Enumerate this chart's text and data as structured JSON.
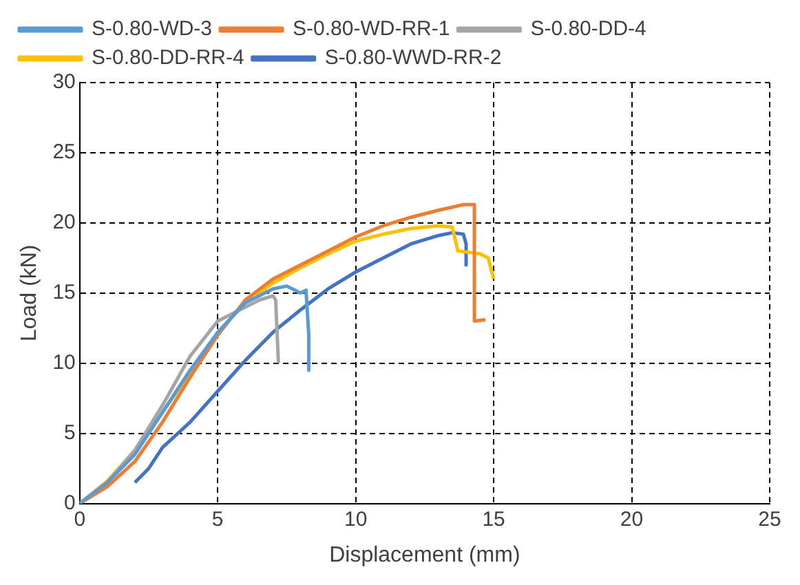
{
  "chart_data": {
    "type": "line",
    "xlabel": "Displacement (mm)",
    "ylabel": "Load (kN)",
    "xlim": [
      0,
      25
    ],
    "ylim": [
      0,
      30
    ],
    "xticks": [
      0,
      5,
      10,
      15,
      20,
      25
    ],
    "yticks": [
      0,
      5,
      10,
      15,
      20,
      25,
      30
    ],
    "grid": true,
    "legend": "top",
    "marker": "none",
    "line_style": "solid",
    "series": [
      {
        "name": "S-0.80-WD-3",
        "color": "#5b9bd5",
        "x": [
          0,
          1,
          2,
          3,
          4,
          5,
          6,
          7,
          7.5,
          8,
          8.2,
          8.3,
          8.3
        ],
        "values": [
          0,
          1.5,
          3.5,
          6.5,
          9.5,
          12.2,
          14.3,
          15.3,
          15.5,
          15,
          15.2,
          12,
          9.5
        ]
      },
      {
        "name": "S-0.80-WD-RR-1",
        "color": "#ed7d31",
        "x": [
          0,
          1,
          2,
          3,
          4,
          5,
          6,
          7,
          8,
          9,
          10,
          11,
          12,
          13,
          13.9,
          14.3,
          14.3,
          14.7
        ],
        "values": [
          0,
          1.2,
          3,
          5.8,
          9,
          12,
          14.5,
          16,
          17,
          18,
          19,
          19.8,
          20.4,
          20.9,
          21.3,
          21.3,
          13,
          13.1
        ]
      },
      {
        "name": "S-0.80-DD-4",
        "color": "#a5a5a5",
        "x": [
          0,
          1,
          2,
          3,
          4,
          5,
          6,
          6.5,
          7,
          7.1,
          7.2
        ],
        "values": [
          0,
          1.5,
          3.8,
          7,
          10.5,
          13,
          14,
          14.5,
          14.8,
          14.5,
          10
        ]
      },
      {
        "name": "S-0.80-DD-RR-4",
        "color": "#ffc000",
        "x": [
          0,
          1,
          2,
          3,
          4,
          5,
          6,
          7,
          8,
          9,
          10,
          11,
          12,
          13,
          13.5,
          13.7,
          14.5,
          14.8,
          15
        ],
        "values": [
          0,
          1.6,
          3.8,
          6.5,
          9.3,
          12.2,
          14.3,
          15.7,
          16.8,
          17.8,
          18.7,
          19.2,
          19.6,
          19.8,
          19.7,
          18,
          17.8,
          17.5,
          16
        ]
      },
      {
        "name": "S-0.80-WWD-RR-2",
        "color": "#4472c4",
        "x": [
          2,
          2.5,
          3,
          4,
          5,
          6,
          7,
          8,
          9,
          10,
          11,
          12,
          13,
          13.5,
          13.9,
          14,
          14
        ],
        "values": [
          1.5,
          2.5,
          4,
          5.8,
          8,
          10.2,
          12.2,
          13.8,
          15.3,
          16.5,
          17.5,
          18.5,
          19.1,
          19.3,
          19.2,
          18.5,
          17
        ]
      }
    ]
  }
}
